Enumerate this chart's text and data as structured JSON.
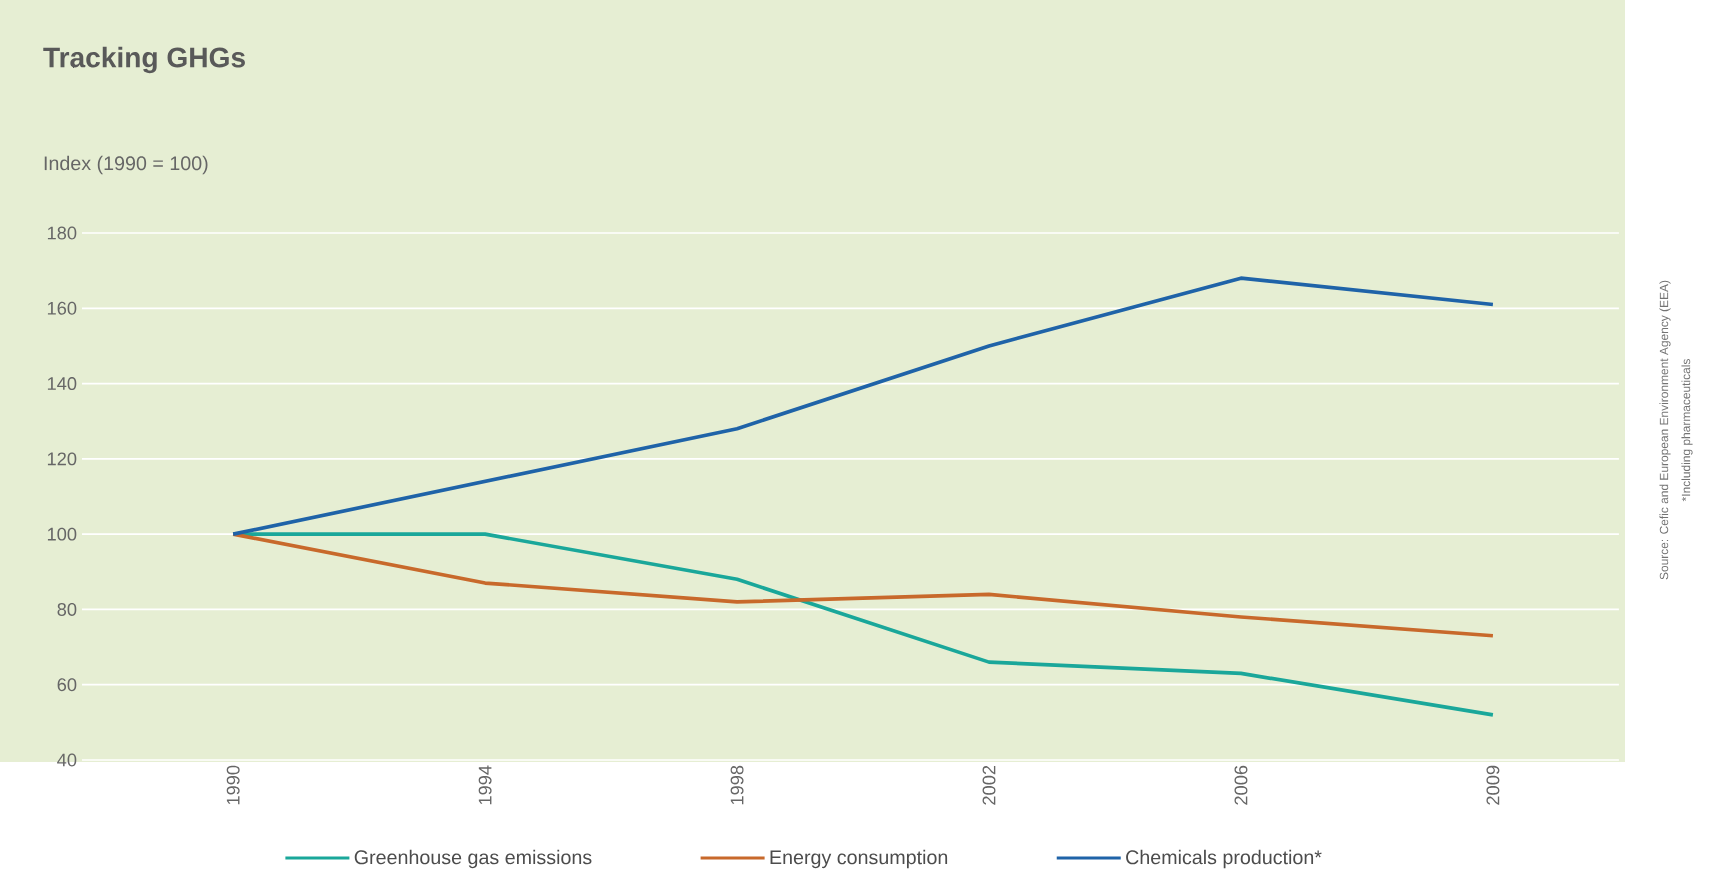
{
  "chart_data": {
    "type": "line",
    "title": "Tracking GHGs",
    "ylabel": "Index (1990 = 100)",
    "categories": [
      "1990",
      "1994",
      "1998",
      "2002",
      "2006",
      "2009"
    ],
    "series": [
      {
        "name": "Greenhouse gas emissions",
        "color": "#1aa79a",
        "values": [
          100,
          100,
          88,
          66,
          63,
          52
        ]
      },
      {
        "name": "Energy consumption",
        "color": "#c8692b",
        "values": [
          100,
          87,
          82,
          84,
          78,
          73
        ]
      },
      {
        "name": "Chemicals production*",
        "color": "#1f63a8",
        "values": [
          100,
          114,
          128,
          150,
          168,
          161
        ]
      }
    ],
    "ylim": [
      40,
      180
    ],
    "yticks": [
      40,
      60,
      80,
      100,
      120,
      140,
      160,
      180
    ],
    "grid": "y",
    "legend": "bottom",
    "marker": "none",
    "line_style": "solid",
    "annotations": [
      "Source: Cefic and European Environment Agency (EEA)",
      "*Including pharmaceuticals"
    ]
  }
}
